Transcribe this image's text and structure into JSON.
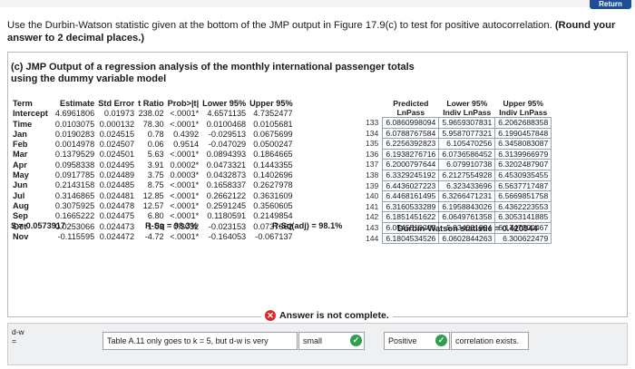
{
  "header": {
    "return_label": "Return"
  },
  "question": {
    "text": "Use the Durbin-Watson statistic given at the bottom of the JMP output in Figure 17.9(c) to test for positive autocorrelation.",
    "bold_text": "(Round your answer to 2 decimal places.)"
  },
  "figure": {
    "caption_line1": "(c) JMP Output of a regression analysis of the monthly international passenger totals",
    "caption_line2": "using the dummy variable model"
  },
  "regression": {
    "headers": [
      "Term",
      "Estimate",
      "Std Error",
      "t Ratio",
      "Prob>|t|",
      "Lower 95%",
      "Upper 95%"
    ],
    "rows": [
      [
        "Intercept",
        "4.6961806",
        "0.01973",
        "238.02",
        "<.0001*",
        "4.6571135",
        "4.7352477"
      ],
      [
        "Time",
        "0.0103075",
        "0.000132",
        "78.30",
        "<.0001*",
        "0.0100468",
        "0.0105681"
      ],
      [
        "Jan",
        "0.0190283",
        "0.024515",
        "0.78",
        "0.4392",
        "-0.029513",
        "0.0675699"
      ],
      [
        "Feb",
        "0.0014978",
        "0.024507",
        "0.06",
        "0.9514",
        "-0.047029",
        "0.0500247"
      ],
      [
        "Mar",
        "0.1379529",
        "0.024501",
        "5.63",
        "<.0001*",
        "0.0894393",
        "0.1864665"
      ],
      [
        "Apr",
        "0.0958338",
        "0.024495",
        "3.91",
        "0.0002*",
        "0.0473321",
        "0.1443355"
      ],
      [
        "May",
        "0.0917785",
        "0.024489",
        "3.75",
        "0.0003*",
        "0.0432873",
        "0.1402696"
      ],
      [
        "Jun",
        "0.2143158",
        "0.024485",
        "8.75",
        "<.0001*",
        "0.1658337",
        "0.2627978"
      ],
      [
        "Jul",
        "0.3146865",
        "0.024481",
        "12.85",
        "<.0001*",
        "0.2662122",
        "0.3631609"
      ],
      [
        "Aug",
        "0.3075925",
        "0.024478",
        "12.57",
        "<.0001*",
        "0.2591245",
        "0.3560605"
      ],
      [
        "Sep",
        "0.1665222",
        "0.024475",
        "6.80",
        "<.0001*",
        "0.1180591",
        "0.2149854"
      ],
      [
        "Oct",
        "0.0253066",
        "0.024473",
        "1.03",
        "0.3032",
        "-0.023153",
        "0.0737662"
      ],
      [
        "Nov",
        "-0.115595",
        "0.024472",
        "-4.72",
        "<.0001*",
        "-0.164053",
        "-0.067137"
      ]
    ],
    "s_text": "S = 0.0573917",
    "rsq_text": "R-Sq = 98.3%",
    "rsq_adj_text": "R-Sq(adj) = 98.1%"
  },
  "predictions": {
    "headers": [
      {
        "line1": "Predicted",
        "line2": "LnPass"
      },
      {
        "line1": "Lower 95%",
        "line2": "Indiv LnPass"
      },
      {
        "line1": "Upper 95%",
        "line2": "Indiv LnPass"
      }
    ],
    "rows": [
      [
        "133",
        "6.0860998094",
        "5.9659307831",
        "6.2062688358"
      ],
      [
        "134",
        "6.0788767584",
        "5.9587077321",
        "6.1990457848"
      ],
      [
        "135",
        "6.2256392823",
        "6.105470256",
        "6.3458083087"
      ],
      [
        "136",
        "6.1938276716",
        "6.0736586452",
        "6.3139966979"
      ],
      [
        "137",
        "6.2000797644",
        "6.079910738",
        "6.3202487907"
      ],
      [
        "138",
        "6.3329245192",
        "6.2127554928",
        "6.4530935455"
      ],
      [
        "139",
        "6.4436027223",
        "6.323433696",
        "6.5637717487"
      ],
      [
        "140",
        "6.4468161495",
        "6.3266471231",
        "6.5669851758"
      ],
      [
        "141",
        "6.3160533289",
        "6.1958843026",
        "6.4362223553"
      ],
      [
        "142",
        "6.1851451622",
        "6.0649761358",
        "6.3053141885"
      ],
      [
        "143",
        "6.0545510203",
        "5.934381994",
        "6.1747200467"
      ],
      [
        "144",
        "6.1804534526",
        "6.0602844263",
        "6.300622479"
      ]
    ],
    "dw_text": "Durbin-Watson statistic = 0.420944"
  },
  "answer": {
    "status_text": "Answer is not complete.",
    "dw_label_line1": "d-w",
    "dw_label_line2": "=",
    "select1_value": "Table A.11 only goes to k = 5, but d-w is very",
    "select2_value": "small",
    "select3_value": "Positive",
    "select4_value": "correlation exists."
  },
  "colors": {
    "return_bg": "#1f4e99",
    "error": "#d92b2b",
    "success": "#2e9e4f"
  }
}
